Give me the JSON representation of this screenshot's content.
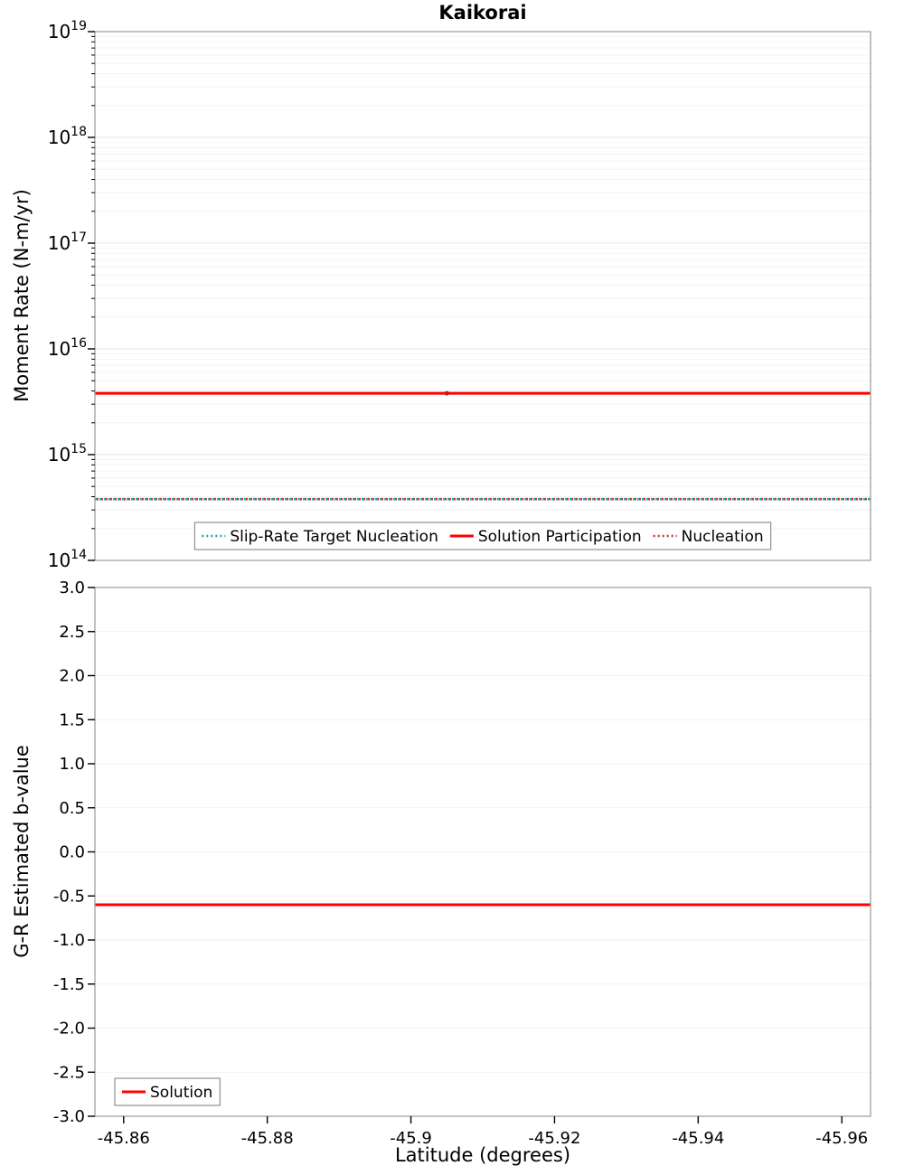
{
  "figure": {
    "title": "Kaikorai",
    "xlabel": "Latitude (degrees)"
  },
  "chart_data": [
    {
      "type": "line",
      "title": "Kaikorai",
      "ylabel": "Moment Rate (N-m/yr)",
      "yscale": "log",
      "y_exponent_range": [
        14,
        19
      ],
      "y_major_tick_exponents": [
        14,
        15,
        16,
        17,
        18,
        19
      ],
      "xlim": [
        -45.856,
        -45.964
      ],
      "xticks": [
        {
          "value": -45.86,
          "label": "-45.86"
        },
        {
          "value": -45.88,
          "label": "-45.88"
        },
        {
          "value": -45.9,
          "label": "-45.9"
        },
        {
          "value": -45.92,
          "label": "-45.92"
        },
        {
          "value": -45.94,
          "label": "-45.94"
        },
        {
          "value": -45.96,
          "label": "-45.96"
        }
      ],
      "x_tick_labels_visible": false,
      "grid": true,
      "series": [
        {
          "name": "Slip-Rate Target Nucleation",
          "color": "#1cadb5",
          "line_style": "dotted",
          "y_value": 380000000000000.0
        },
        {
          "name": "Solution Participation",
          "color": "#ff0000",
          "line_style": "solid",
          "y_value": 3800000000000000.0
        },
        {
          "name": "Nucleation",
          "color": "#cc3333",
          "line_style": "dotted",
          "y_value": 380000000000000.0
        }
      ],
      "point_marker": {
        "x": -45.905,
        "y": 3800000000000000.0,
        "color": "#b22222"
      },
      "legend": {
        "position": "bottom-center",
        "entries": [
          "Slip-Rate Target Nucleation",
          "Solution Participation",
          "Nucleation"
        ]
      }
    },
    {
      "type": "line",
      "ylabel": "G-R Estimated b-value",
      "xlabel": "Latitude (degrees)",
      "yscale": "linear",
      "ylim": [
        -3.0,
        3.0
      ],
      "ytick_step": 0.5,
      "xlim": [
        -45.856,
        -45.964
      ],
      "xticks": [
        {
          "value": -45.86,
          "label": "-45.86"
        },
        {
          "value": -45.88,
          "label": "-45.88"
        },
        {
          "value": -45.9,
          "label": "-45.9"
        },
        {
          "value": -45.92,
          "label": "-45.92"
        },
        {
          "value": -45.94,
          "label": "-45.94"
        },
        {
          "value": -45.96,
          "label": "-45.96"
        }
      ],
      "x_tick_labels_visible": true,
      "grid": true,
      "series": [
        {
          "name": "Solution",
          "color": "#ff0000",
          "line_style": "solid",
          "y_value": -0.6
        }
      ],
      "legend": {
        "position": "bottom-left",
        "entries": [
          "Solution"
        ]
      }
    }
  ],
  "colors": {
    "solid_red": "#ff0000",
    "dotted_red": "#cc3333",
    "dotted_teal": "#1cadb5",
    "major_grid": "#e4e4e4",
    "minor_grid": "#f3f3f3",
    "plot_border": "#9a9a9a"
  }
}
